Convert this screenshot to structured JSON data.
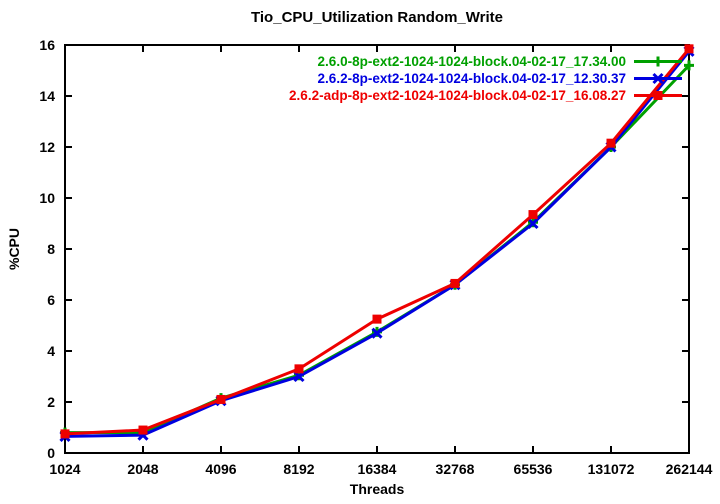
{
  "chart_data": {
    "type": "line",
    "title": "Tio_CPU_Utilization Random_Write",
    "xlabel": "Threads",
    "ylabel": "%CPU",
    "x_scale": "log2",
    "categories": [
      1024,
      2048,
      4096,
      8192,
      16384,
      32768,
      65536,
      131072,
      262144
    ],
    "x_tick_labels": [
      "1024",
      "2048",
      "4096",
      "8192",
      "16384",
      "32768",
      "65536",
      "131072",
      "262144"
    ],
    "y_ticks": [
      0,
      2,
      4,
      6,
      8,
      10,
      12,
      14,
      16
    ],
    "ylim": [
      0,
      16
    ],
    "grid": false,
    "legend_position": "top-right-inside",
    "axis_color": "#000000",
    "background_color": "#ffffff",
    "series": [
      {
        "name": "2.6.0-8p-ext2-1024-1024-block.04-02-17_17.34.00",
        "color": "#00A000",
        "marker": "plus",
        "values": [
          0.8,
          0.8,
          2.15,
          3.05,
          4.75,
          6.6,
          9.05,
          12.0,
          15.2
        ]
      },
      {
        "name": "2.6.2-8p-ext2-1024-1024-block.04-02-17_12.30.37",
        "color": "#0000E0",
        "marker": "cross",
        "values": [
          0.65,
          0.7,
          2.05,
          3.0,
          4.7,
          6.6,
          9.0,
          12.0,
          15.75
        ]
      },
      {
        "name": "2.6.2-adp-8p-ext2-1024-1024-block.04-02-17_16.08.27",
        "color": "#EE0000",
        "marker": "square",
        "values": [
          0.75,
          0.9,
          2.1,
          3.3,
          5.25,
          6.65,
          9.35,
          12.15,
          15.85
        ]
      }
    ]
  }
}
